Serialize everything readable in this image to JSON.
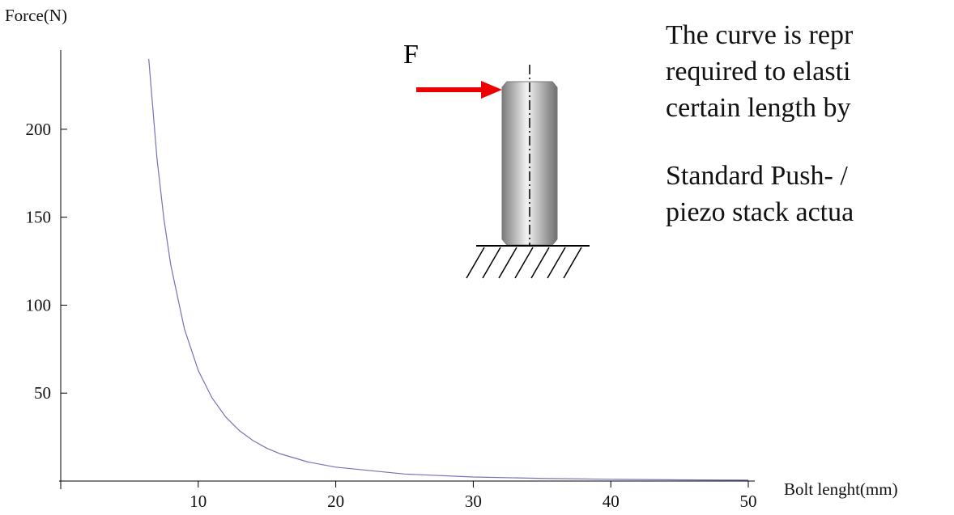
{
  "chart_data": {
    "type": "line",
    "x_label": "Bolt lenght(mm)",
    "y_label": "Force(N)",
    "x": [
      6.4,
      7,
      7.5,
      8,
      9,
      10,
      11,
      12,
      13,
      14,
      15,
      16,
      18,
      20,
      25,
      30,
      35,
      40,
      45,
      50
    ],
    "values": [
      240.0,
      183.4,
      149.1,
      122.9,
      86.3,
      62.9,
      47.3,
      36.4,
      28.6,
      22.9,
      18.6,
      15.4,
      10.8,
      7.9,
      4.0,
      2.3,
      1.5,
      1.0,
      0.7,
      0.5
    ],
    "color": "#7373b8",
    "xlim": [
      0,
      50
    ],
    "ylim": [
      0,
      245
    ],
    "xticks": [
      10,
      20,
      30,
      40,
      50
    ],
    "yticks": [
      50,
      100,
      150,
      200
    ],
    "grid": false
  },
  "diagram": {
    "force_label": "F"
  },
  "text_lines": [
    "The curve is repr",
    "required to elasti",
    "certain length by",
    "Standard Push- /",
    "piezo stack  actua"
  ]
}
